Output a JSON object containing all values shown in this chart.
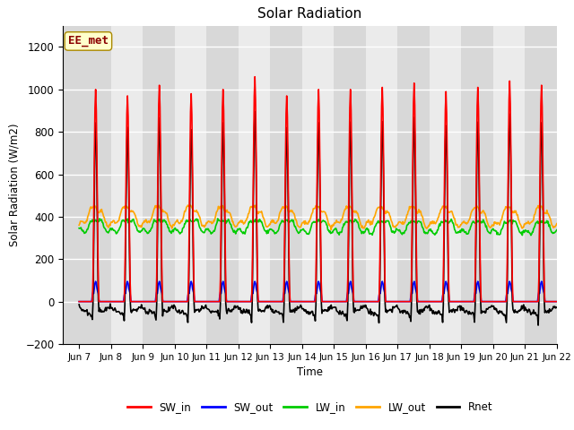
{
  "title": "Solar Radiation",
  "ylabel": "Solar Radiation (W/m2)",
  "xlabel": "Time",
  "xlim_days": [
    6.5,
    22.0
  ],
  "ylim": [
    -200,
    1300
  ],
  "yticks": [
    -200,
    0,
    200,
    400,
    600,
    800,
    1000,
    1200
  ],
  "xtick_labels": [
    "Jun 7",
    "Jun 8",
    "Jun 9",
    "Jun 10",
    "Jun 11",
    "Jun 12",
    "Jun 13",
    "Jun 14",
    "Jun 15",
    "Jun 16",
    "Jun 17",
    "Jun 18",
    "Jun 19",
    "Jun 20",
    "Jun 21",
    "Jun 22"
  ],
  "xtick_positions": [
    7,
    8,
    9,
    10,
    11,
    12,
    13,
    14,
    15,
    16,
    17,
    18,
    19,
    20,
    21,
    22
  ],
  "annotation_text": "EE_met",
  "annotation_color": "#8B0000",
  "bg_color": "#d8d8d8",
  "alt_band_color": "#e8e8e8",
  "grid_color": "#cccccc",
  "series": {
    "SW_in": {
      "color": "red",
      "lw": 1.2
    },
    "SW_out": {
      "color": "blue",
      "lw": 1.2
    },
    "LW_in": {
      "color": "#00cc00",
      "lw": 1.2
    },
    "LW_out": {
      "color": "orange",
      "lw": 1.2
    },
    "Rnet": {
      "color": "black",
      "lw": 1.2
    }
  }
}
